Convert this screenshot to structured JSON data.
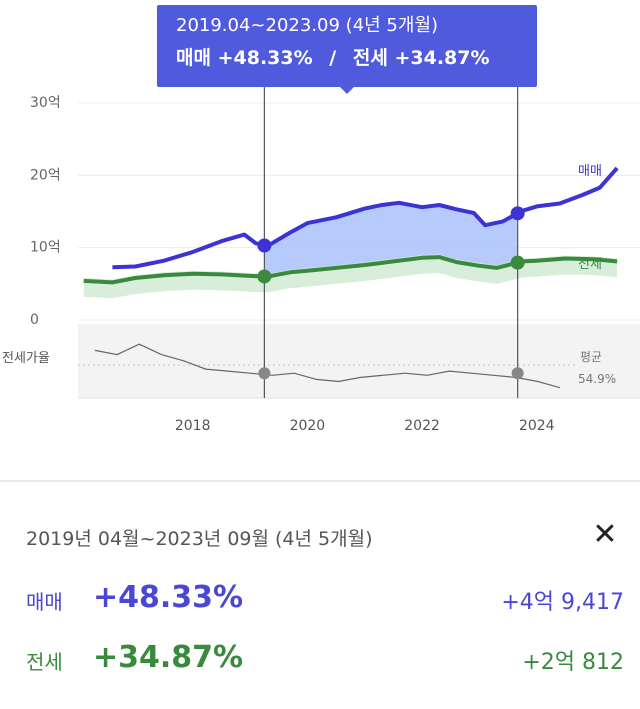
{
  "tooltip": {
    "period": "2019.04~2023.09 (4년 5개월)",
    "sale_label": "매매",
    "sale_change": "+48.33%",
    "separator": "/",
    "jeonse_label": "전세",
    "jeonse_change": "+34.87%"
  },
  "panel": {
    "period": "2019년 04월~2023년 09월 (4년 5개월)",
    "close_icon": "close-icon",
    "rows": [
      {
        "label": "매매",
        "change": "+48.33%",
        "amount": "+4억 9,417"
      },
      {
        "label": "전세",
        "change": "+34.87%",
        "amount": "+2억 812"
      }
    ]
  },
  "colors": {
    "sale": "#3c33d6",
    "jeonse": "#3a8a3e",
    "ratio": "#666666",
    "highlight_fill": "#a9c2fb",
    "tooltip_bg": "#4f5bdc"
  },
  "chart_data": {
    "type": "line",
    "x_ticks": [
      "2018",
      "2020",
      "2022",
      "2024"
    ],
    "y_ticks": [
      "30억",
      "20억",
      "10억",
      "0"
    ],
    "ylim": [
      0,
      30
    ],
    "grid": true,
    "highlight_range": [
      "2019.04",
      "2023.09"
    ],
    "series": [
      {
        "name": "매매",
        "x": [
          2016.6,
          2017.0,
          2017.5,
          2018.0,
          2018.5,
          2018.9,
          2019.1,
          2019.3,
          2019.7,
          2020.0,
          2020.5,
          2021.0,
          2021.3,
          2021.6,
          2022.0,
          2022.3,
          2022.6,
          2022.9,
          2023.1,
          2023.4,
          2023.75,
          2024.0,
          2024.4,
          2024.8,
          2025.1,
          2025.4
        ],
        "values": [
          7.3,
          7.4,
          8.2,
          9.4,
          10.9,
          11.8,
          10.6,
          10.2,
          12.1,
          13.4,
          14.2,
          15.4,
          15.9,
          16.2,
          15.6,
          15.9,
          15.3,
          14.8,
          13.1,
          13.6,
          15.1,
          15.7,
          16.1,
          17.3,
          18.3,
          21.0
        ]
      },
      {
        "name": "전세",
        "x": [
          2016.1,
          2016.6,
          2017.0,
          2017.5,
          2018.0,
          2018.5,
          2019.0,
          2019.3,
          2019.7,
          2020.0,
          2020.5,
          2021.0,
          2021.5,
          2022.0,
          2022.3,
          2022.6,
          2023.0,
          2023.3,
          2023.75,
          2024.0,
          2024.5,
          2025.0,
          2025.4
        ],
        "values": [
          5.4,
          5.2,
          5.8,
          6.2,
          6.4,
          6.3,
          6.1,
          6.0,
          6.6,
          6.8,
          7.2,
          7.6,
          8.1,
          8.6,
          8.7,
          8.0,
          7.5,
          7.2,
          8.1,
          8.2,
          8.5,
          8.4,
          8.1
        ]
      }
    ],
    "ratio_panel": {
      "label": "전세가율",
      "average_label": "평균",
      "average_value": "54.9%",
      "values": [
        62,
        60,
        65,
        60,
        57,
        53,
        52,
        51,
        50,
        51,
        48,
        47,
        49,
        50,
        51,
        50,
        52,
        51,
        50,
        49,
        47,
        44
      ]
    }
  }
}
